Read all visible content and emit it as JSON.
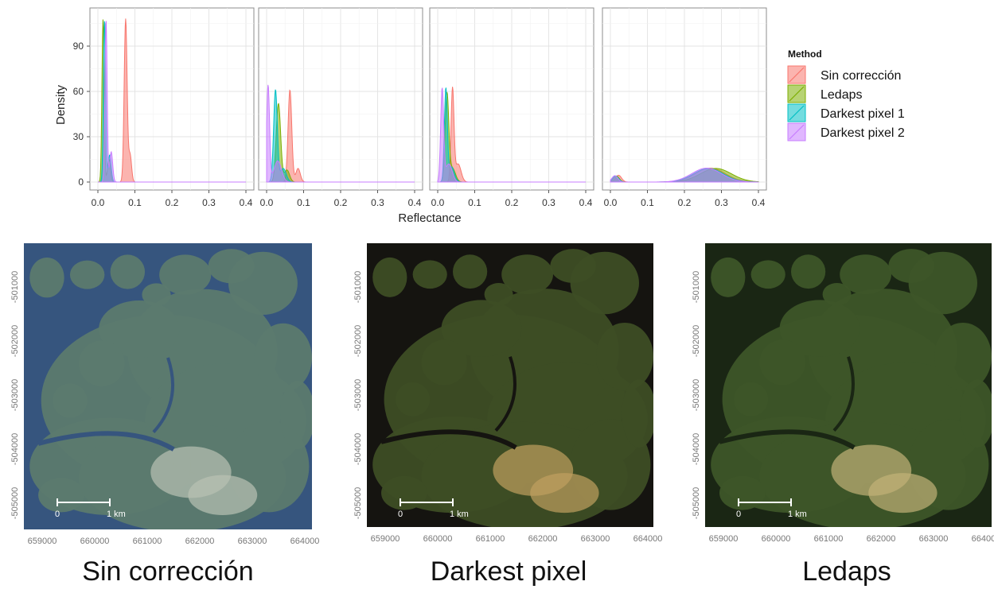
{
  "chart_data": {
    "type": "area",
    "xlabel": "Reflectance",
    "ylabel": "Density",
    "x_ticks": [
      "0.0",
      "0.1",
      "0.2",
      "0.3",
      "0.4"
    ],
    "y_ticks": [
      "0",
      "30",
      "60",
      "90"
    ],
    "xlim": [
      0,
      0.4
    ],
    "ylim": [
      0,
      110
    ],
    "grid": true,
    "legend": {
      "title": "Method",
      "placement": "right",
      "entries": [
        {
          "name": "Sin corrección",
          "color": "#f8766d"
        },
        {
          "name": "Ledaps",
          "color": "#7cae00"
        },
        {
          "name": "Darkest pixel 1",
          "color": "#00bfc4"
        },
        {
          "name": "Darkest pixel 2",
          "color": "#c77cff"
        }
      ]
    },
    "panels": [
      {
        "series": [
          {
            "name": "Sin corrección",
            "peaks": [
              {
                "x": 0.075,
                "y": 108,
                "sd": 0.004
              },
              {
                "x": 0.087,
                "y": 18,
                "sd": 0.004
              }
            ]
          },
          {
            "name": "Ledaps",
            "peaks": [
              {
                "x": 0.014,
                "y": 108,
                "sd": 0.003
              },
              {
                "x": 0.03,
                "y": 15,
                "sd": 0.004
              }
            ]
          },
          {
            "name": "Darkest pixel 1",
            "peaks": [
              {
                "x": 0.018,
                "y": 108,
                "sd": 0.003
              },
              {
                "x": 0.032,
                "y": 18,
                "sd": 0.004
              }
            ]
          },
          {
            "name": "Darkest pixel 2",
            "peaks": [
              {
                "x": 0.022,
                "y": 108,
                "sd": 0.003
              },
              {
                "x": 0.036,
                "y": 20,
                "sd": 0.004
              }
            ]
          }
        ]
      },
      {
        "series": [
          {
            "name": "Sin corrección",
            "peaks": [
              {
                "x": 0.063,
                "y": 61,
                "sd": 0.005
              },
              {
                "x": 0.085,
                "y": 9,
                "sd": 0.006
              }
            ]
          },
          {
            "name": "Ledaps",
            "peaks": [
              {
                "x": 0.032,
                "y": 52,
                "sd": 0.006
              },
              {
                "x": 0.055,
                "y": 8,
                "sd": 0.007
              }
            ]
          },
          {
            "name": "Darkest pixel 1",
            "peaks": [
              {
                "x": 0.024,
                "y": 61,
                "sd": 0.005
              },
              {
                "x": 0.045,
                "y": 9,
                "sd": 0.008
              }
            ]
          },
          {
            "name": "Darkest pixel 2",
            "peaks": [
              {
                "x": 0.004,
                "y": 64,
                "sd": 0.004
              },
              {
                "x": 0.03,
                "y": 14,
                "sd": 0.01
              }
            ]
          }
        ]
      },
      {
        "series": [
          {
            "name": "Sin corrección",
            "peaks": [
              {
                "x": 0.04,
                "y": 61,
                "sd": 0.004
              },
              {
                "x": 0.055,
                "y": 12,
                "sd": 0.008
              }
            ]
          },
          {
            "name": "Ledaps",
            "peaks": [
              {
                "x": 0.025,
                "y": 58,
                "sd": 0.005
              },
              {
                "x": 0.04,
                "y": 9,
                "sd": 0.008
              }
            ]
          },
          {
            "name": "Darkest pixel 1",
            "peaks": [
              {
                "x": 0.022,
                "y": 61,
                "sd": 0.004
              },
              {
                "x": 0.037,
                "y": 10,
                "sd": 0.008
              }
            ]
          },
          {
            "name": "Darkest pixel 2",
            "peaks": [
              {
                "x": 0.012,
                "y": 61,
                "sd": 0.004
              },
              {
                "x": 0.03,
                "y": 12,
                "sd": 0.009
              }
            ]
          }
        ]
      },
      {
        "series": [
          {
            "name": "Sin corrección",
            "peaks": [
              {
                "x": 0.022,
                "y": 4.5,
                "sd": 0.008
              },
              {
                "x": 0.27,
                "y": 9.2,
                "sd": 0.04
              }
            ]
          },
          {
            "name": "Ledaps",
            "peaks": [
              {
                "x": 0.016,
                "y": 4,
                "sd": 0.008
              },
              {
                "x": 0.285,
                "y": 9,
                "sd": 0.042
              }
            ]
          },
          {
            "name": "Darkest pixel 1",
            "peaks": [
              {
                "x": 0.014,
                "y": 4,
                "sd": 0.008
              },
              {
                "x": 0.265,
                "y": 9,
                "sd": 0.04
              }
            ]
          },
          {
            "name": "Darkest pixel 2",
            "peaks": [
              {
                "x": 0.012,
                "y": 4.2,
                "sd": 0.008
              },
              {
                "x": 0.26,
                "y": 9.2,
                "sd": 0.04
              }
            ]
          }
        ]
      }
    ]
  },
  "maps": {
    "x_ticks": [
      "659000",
      "660000",
      "661000",
      "662000",
      "663000",
      "664000"
    ],
    "y_ticks": [
      "-501000",
      "-502000",
      "-503000",
      "-504000",
      "-505000"
    ],
    "scale_start": "0",
    "scale_end": "1 km",
    "panels": [
      {
        "title": "Sin corrección",
        "water": "#36557e",
        "land": "#5c7a6e",
        "bright": "#b9c2b4"
      },
      {
        "title": "Darkest pixel",
        "water": "#151410",
        "land": "#3d4d25",
        "bright": "#c0a060"
      },
      {
        "title": "Ledaps",
        "water": "#1a2614",
        "land": "#3d5528",
        "bright": "#c2b277"
      }
    ]
  }
}
